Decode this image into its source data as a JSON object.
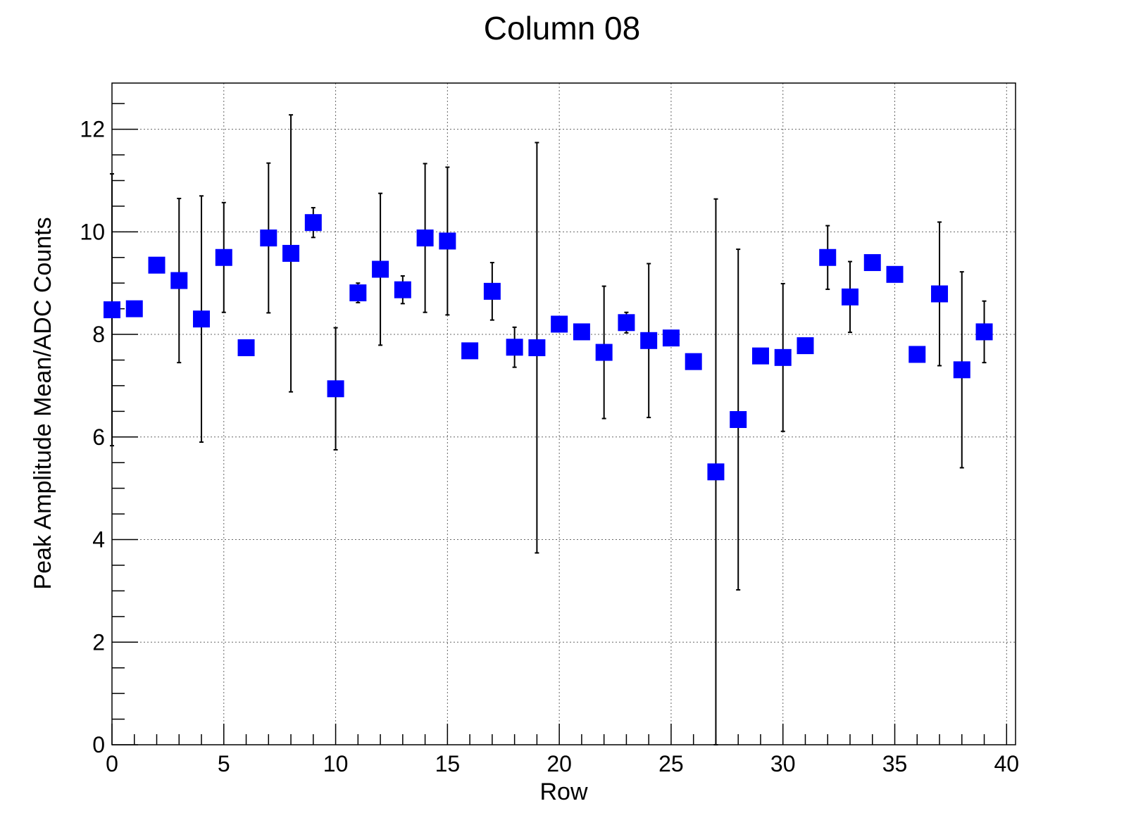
{
  "chart_data": {
    "type": "scatter",
    "title": "Column 08",
    "xlabel": "Row",
    "ylabel": "Peak Amplitude Mean/ADC Counts",
    "xlim": [
      0,
      40.4
    ],
    "ylim": [
      0,
      12.9
    ],
    "xticks": [
      0,
      5,
      10,
      15,
      20,
      25,
      30,
      35,
      40
    ],
    "xtick_labels": [
      "0",
      "5",
      "10",
      "15",
      "20",
      "25",
      "30",
      "35",
      "40"
    ],
    "yticks": [
      0,
      2,
      4,
      6,
      8,
      10,
      12
    ],
    "ytick_labels": [
      "0",
      "2",
      "4",
      "6",
      "8",
      "10",
      "12"
    ],
    "grid": true,
    "marker": "square",
    "marker_color": "#0000ff",
    "error_bar_color": "#000000",
    "points": [
      {
        "x": 0,
        "y": 8.48,
        "err_lo": 2.65,
        "err_hi": 2.65
      },
      {
        "x": 1,
        "y": 8.5,
        "err_lo": 0.0,
        "err_hi": 0.0
      },
      {
        "x": 2,
        "y": 9.35,
        "err_lo": 0.0,
        "err_hi": 0.0
      },
      {
        "x": 3,
        "y": 9.05,
        "err_lo": 1.6,
        "err_hi": 1.6
      },
      {
        "x": 4,
        "y": 8.3,
        "err_lo": 2.4,
        "err_hi": 2.4
      },
      {
        "x": 5,
        "y": 9.5,
        "err_lo": 1.07,
        "err_hi": 1.07
      },
      {
        "x": 6,
        "y": 7.74,
        "err_lo": 0.0,
        "err_hi": 0.0
      },
      {
        "x": 7,
        "y": 9.88,
        "err_lo": 1.46,
        "err_hi": 1.46
      },
      {
        "x": 8,
        "y": 9.58,
        "err_lo": 2.7,
        "err_hi": 2.7
      },
      {
        "x": 9,
        "y": 10.18,
        "err_lo": 0.29,
        "err_hi": 0.29
      },
      {
        "x": 10,
        "y": 6.94,
        "err_lo": 1.19,
        "err_hi": 1.19
      },
      {
        "x": 11,
        "y": 8.81,
        "err_lo": 0.19,
        "err_hi": 0.19
      },
      {
        "x": 12,
        "y": 9.27,
        "err_lo": 1.48,
        "err_hi": 1.48
      },
      {
        "x": 13,
        "y": 8.87,
        "err_lo": 0.27,
        "err_hi": 0.27
      },
      {
        "x": 14,
        "y": 9.88,
        "err_lo": 1.45,
        "err_hi": 1.45
      },
      {
        "x": 15,
        "y": 9.82,
        "err_lo": 1.44,
        "err_hi": 1.44
      },
      {
        "x": 16,
        "y": 7.68,
        "err_lo": 0.0,
        "err_hi": 0.0
      },
      {
        "x": 17,
        "y": 8.84,
        "err_lo": 0.56,
        "err_hi": 0.56
      },
      {
        "x": 18,
        "y": 7.75,
        "err_lo": 0.39,
        "err_hi": 0.39
      },
      {
        "x": 19,
        "y": 7.74,
        "err_lo": 4.0,
        "err_hi": 4.0
      },
      {
        "x": 20,
        "y": 8.2,
        "err_lo": 0.0,
        "err_hi": 0.0
      },
      {
        "x": 21,
        "y": 8.05,
        "err_lo": 0.0,
        "err_hi": 0.0
      },
      {
        "x": 22,
        "y": 7.65,
        "err_lo": 1.29,
        "err_hi": 1.29
      },
      {
        "x": 23,
        "y": 8.23,
        "err_lo": 0.2,
        "err_hi": 0.2
      },
      {
        "x": 24,
        "y": 7.88,
        "err_lo": 1.5,
        "err_hi": 1.5
      },
      {
        "x": 25,
        "y": 7.93,
        "err_lo": 0.0,
        "err_hi": 0.0
      },
      {
        "x": 26,
        "y": 7.47,
        "err_lo": 0.0,
        "err_hi": 0.0
      },
      {
        "x": 27,
        "y": 5.32,
        "err_lo": 5.32,
        "err_hi": 5.32
      },
      {
        "x": 28,
        "y": 6.34,
        "err_lo": 3.32,
        "err_hi": 3.32
      },
      {
        "x": 29,
        "y": 7.58,
        "err_lo": 0.0,
        "err_hi": 0.0
      },
      {
        "x": 30,
        "y": 7.55,
        "err_lo": 1.44,
        "err_hi": 1.44
      },
      {
        "x": 31,
        "y": 7.78,
        "err_lo": 0.0,
        "err_hi": 0.0
      },
      {
        "x": 32,
        "y": 9.5,
        "err_lo": 0.62,
        "err_hi": 0.62
      },
      {
        "x": 33,
        "y": 8.73,
        "err_lo": 0.69,
        "err_hi": 0.69
      },
      {
        "x": 34,
        "y": 9.4,
        "err_lo": 0.0,
        "err_hi": 0.0
      },
      {
        "x": 35,
        "y": 9.17,
        "err_lo": 0.0,
        "err_hi": 0.0
      },
      {
        "x": 36,
        "y": 7.61,
        "err_lo": 0.0,
        "err_hi": 0.0
      },
      {
        "x": 37,
        "y": 8.79,
        "err_lo": 1.4,
        "err_hi": 1.4
      },
      {
        "x": 38,
        "y": 7.31,
        "err_lo": 1.91,
        "err_hi": 1.91
      },
      {
        "x": 39,
        "y": 8.05,
        "err_lo": 0.6,
        "err_hi": 0.6
      }
    ]
  }
}
